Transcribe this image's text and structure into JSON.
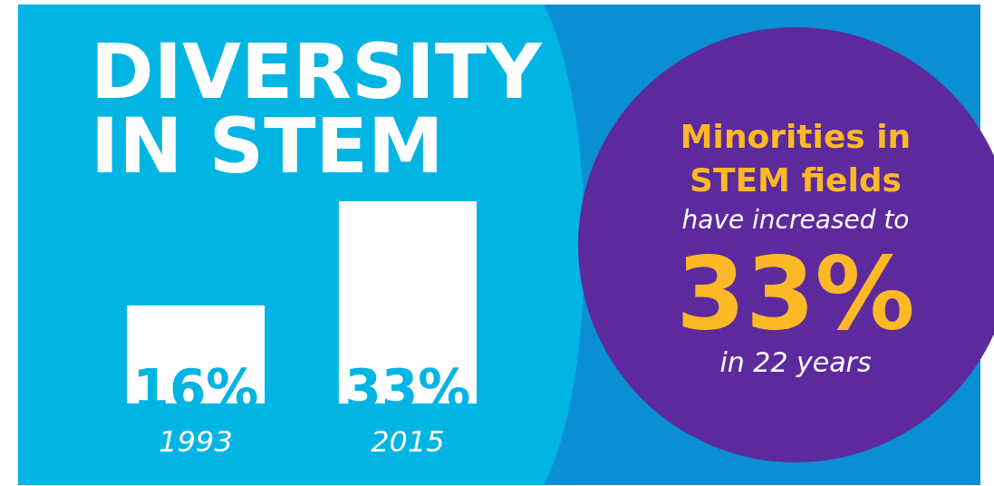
{
  "chart_data": {
    "type": "bar",
    "title": "DIVERSITY IN STEM",
    "categories": [
      "1993",
      "2015"
    ],
    "values": [
      16,
      33
    ],
    "value_labels": [
      "16%",
      "33%"
    ],
    "color": "#ffffff",
    "annotations": [
      "Minorities in",
      "STEM fields",
      "have increased to",
      "33%",
      "in 22 years"
    ]
  }
}
